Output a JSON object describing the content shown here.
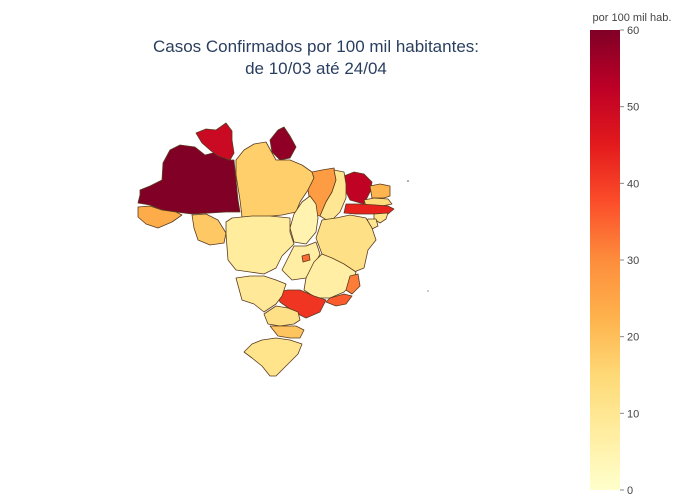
{
  "title": {
    "line1": "Casos Confirmados por 100 mil habitantes:",
    "line2": "de 10/03 até 24/04"
  },
  "colorbar": {
    "title": "por 100 mil hab.",
    "range": [
      0,
      60
    ],
    "ticks": [
      "0",
      "10",
      "20",
      "30",
      "40",
      "50",
      "60"
    ],
    "colorscale": [
      "#ffffcc",
      "#ffeda0",
      "#fed976",
      "#feb24c",
      "#fd8d3c",
      "#fc4e2a",
      "#e31a1c",
      "#bd0026",
      "#800026"
    ]
  },
  "chart_data": {
    "type": "choropleth",
    "value_label": "por 100 mil hab.",
    "range": [
      0,
      60
    ],
    "regions": [
      {
        "id": "AM",
        "value": 60
      },
      {
        "id": "AP",
        "value": 58
      },
      {
        "id": "RR",
        "value": 50
      },
      {
        "id": "AC",
        "value": 24
      },
      {
        "id": "RO",
        "value": 18
      },
      {
        "id": "PA",
        "value": 17
      },
      {
        "id": "MA",
        "value": 27
      },
      {
        "id": "CE",
        "value": 52
      },
      {
        "id": "RN",
        "value": 22
      },
      {
        "id": "PB",
        "value": 14
      },
      {
        "id": "PE",
        "value": 44
      },
      {
        "id": "AL",
        "value": 11
      },
      {
        "id": "SE",
        "value": 10
      },
      {
        "id": "PI",
        "value": 10
      },
      {
        "id": "TO",
        "value": 5
      },
      {
        "id": "BA",
        "value": 12
      },
      {
        "id": "MT",
        "value": 8
      },
      {
        "id": "GO",
        "value": 7
      },
      {
        "id": "DF",
        "value": 34
      },
      {
        "id": "MG",
        "value": 7
      },
      {
        "id": "ES",
        "value": 32
      },
      {
        "id": "RJ",
        "value": 36
      },
      {
        "id": "SP",
        "value": 41
      },
      {
        "id": "MS",
        "value": 9
      },
      {
        "id": "PR",
        "value": 12
      },
      {
        "id": "SC",
        "value": 19
      },
      {
        "id": "RS",
        "value": 11
      }
    ]
  }
}
